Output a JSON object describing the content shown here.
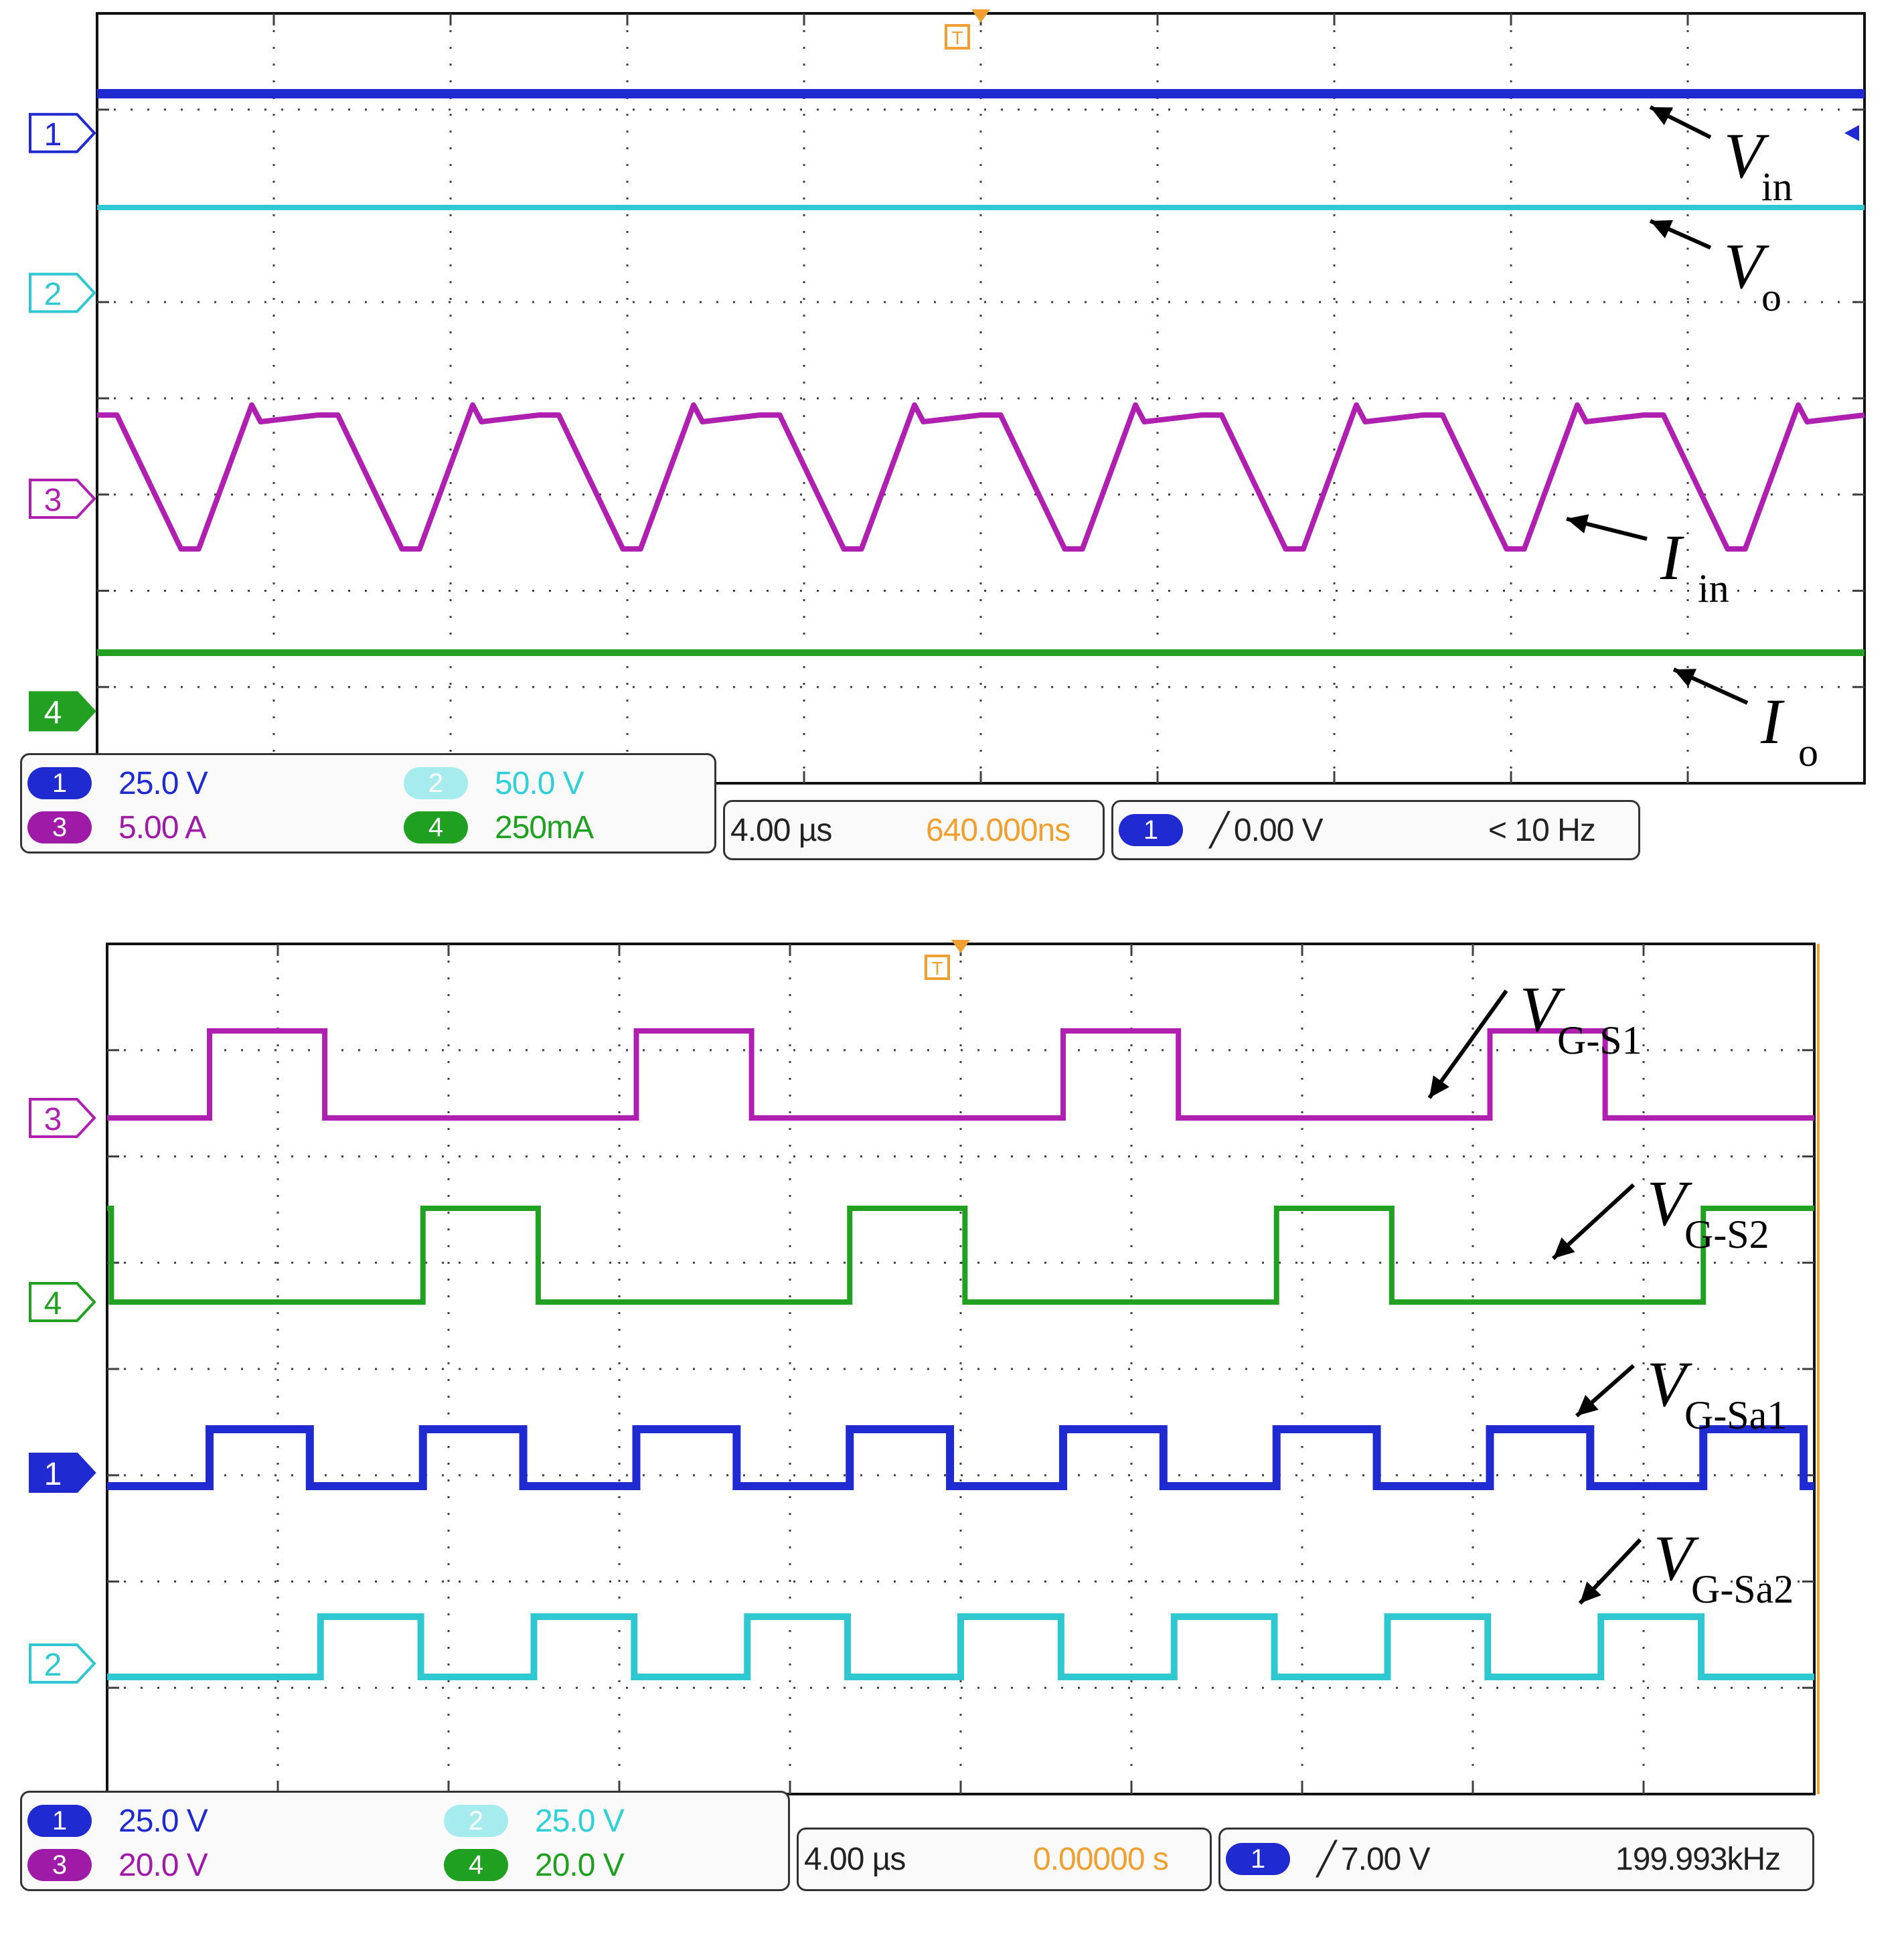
{
  "colors": {
    "ch1": "#1f2ad0",
    "ch2": "#30c8d0",
    "ch3": "#b020b0",
    "ch4": "#22a022",
    "grid": "#404040",
    "trigger": "#f0a030"
  },
  "chart_data": [
    {
      "type": "line",
      "title": "",
      "x": {
        "divisions": 10,
        "unit": "us/div",
        "scale": "4.00 us"
      },
      "series": [
        {
          "channel": "1",
          "name": "Vin",
          "level": 0.2,
          "shape": "dc"
        },
        {
          "channel": "2",
          "name": "Vo",
          "level": 0.2,
          "shape": "dc"
        },
        {
          "channel": "3",
          "name": "Iin",
          "shape": "ripple",
          "periods": 8,
          "high": 0.5,
          "low": -0.2
        },
        {
          "channel": "4",
          "name": "Io",
          "level": 0.25,
          "shape": "dc"
        }
      ],
      "markers": {
        "1": "1",
        "2": "2",
        "3": "3",
        "4": "4"
      },
      "trace_labels": [
        {
          "main": "V",
          "sub": "in"
        },
        {
          "main": "V",
          "sub": "o"
        },
        {
          "main": "I",
          "sub": "in"
        },
        {
          "main": "I",
          "sub": "o"
        }
      ],
      "readout": {
        "ch1_scale": "25.0 V",
        "ch2_scale": "50.0 V",
        "ch3_scale": "5.00 A",
        "ch4_scale": "250mA",
        "timebase": "4.00 µs",
        "trigger_pos": "640.000ns",
        "trigger_level": "0.00 V",
        "trigger_freq": "< 10 Hz",
        "trigger_source": "1",
        "chip_1": "1",
        "chip_2": "2",
        "chip_3": "3",
        "chip_4": "4"
      }
    },
    {
      "type": "line",
      "title": "",
      "x": {
        "divisions": 10,
        "unit": "us/div",
        "scale": "4.00 us"
      },
      "series": [
        {
          "channel": "3",
          "name": "VG-S1",
          "shape": "pulse",
          "period_div": 2.5,
          "duty": 0.27,
          "phase_div": 0.6,
          "high": 0.75
        },
        {
          "channel": "4",
          "name": "VG-S2",
          "shape": "pulse",
          "period_div": 2.5,
          "duty": 0.27,
          "phase_div": 1.85,
          "high": 0.8
        },
        {
          "channel": "1",
          "name": "VG-Sa1",
          "shape": "square",
          "period_div": 1.25,
          "duty": 0.47,
          "phase_div": 0.6,
          "high": 0.62,
          "low": 0.05
        },
        {
          "channel": "2",
          "name": "VG-Sa2",
          "shape": "square",
          "period_div": 1.25,
          "duty": 0.47,
          "phase_div": 0.0,
          "high": 0.65,
          "low": 0.07
        }
      ],
      "markers": {
        "1": "1",
        "2": "2",
        "3": "3",
        "4": "4"
      },
      "trace_labels": [
        {
          "main": "V",
          "sub": "G-S",
          "idx": "1"
        },
        {
          "main": "V",
          "sub": "G-S",
          "idx": "2"
        },
        {
          "main": "V",
          "sub": "G-S",
          "idx": "a1"
        },
        {
          "main": "V",
          "sub": "G-S",
          "idx": "a2"
        }
      ],
      "readout": {
        "ch1_scale": "25.0 V",
        "ch2_scale": "25.0 V",
        "ch3_scale": "20.0 V",
        "ch4_scale": "20.0 V",
        "timebase": "4.00 µs",
        "trigger_pos": "0.00000 s",
        "trigger_level": "7.00 V",
        "trigger_freq": "199.993kHz",
        "trigger_source": "1",
        "chip_1": "1",
        "chip_2": "2",
        "chip_3": "3",
        "chip_4": "4"
      }
    }
  ]
}
